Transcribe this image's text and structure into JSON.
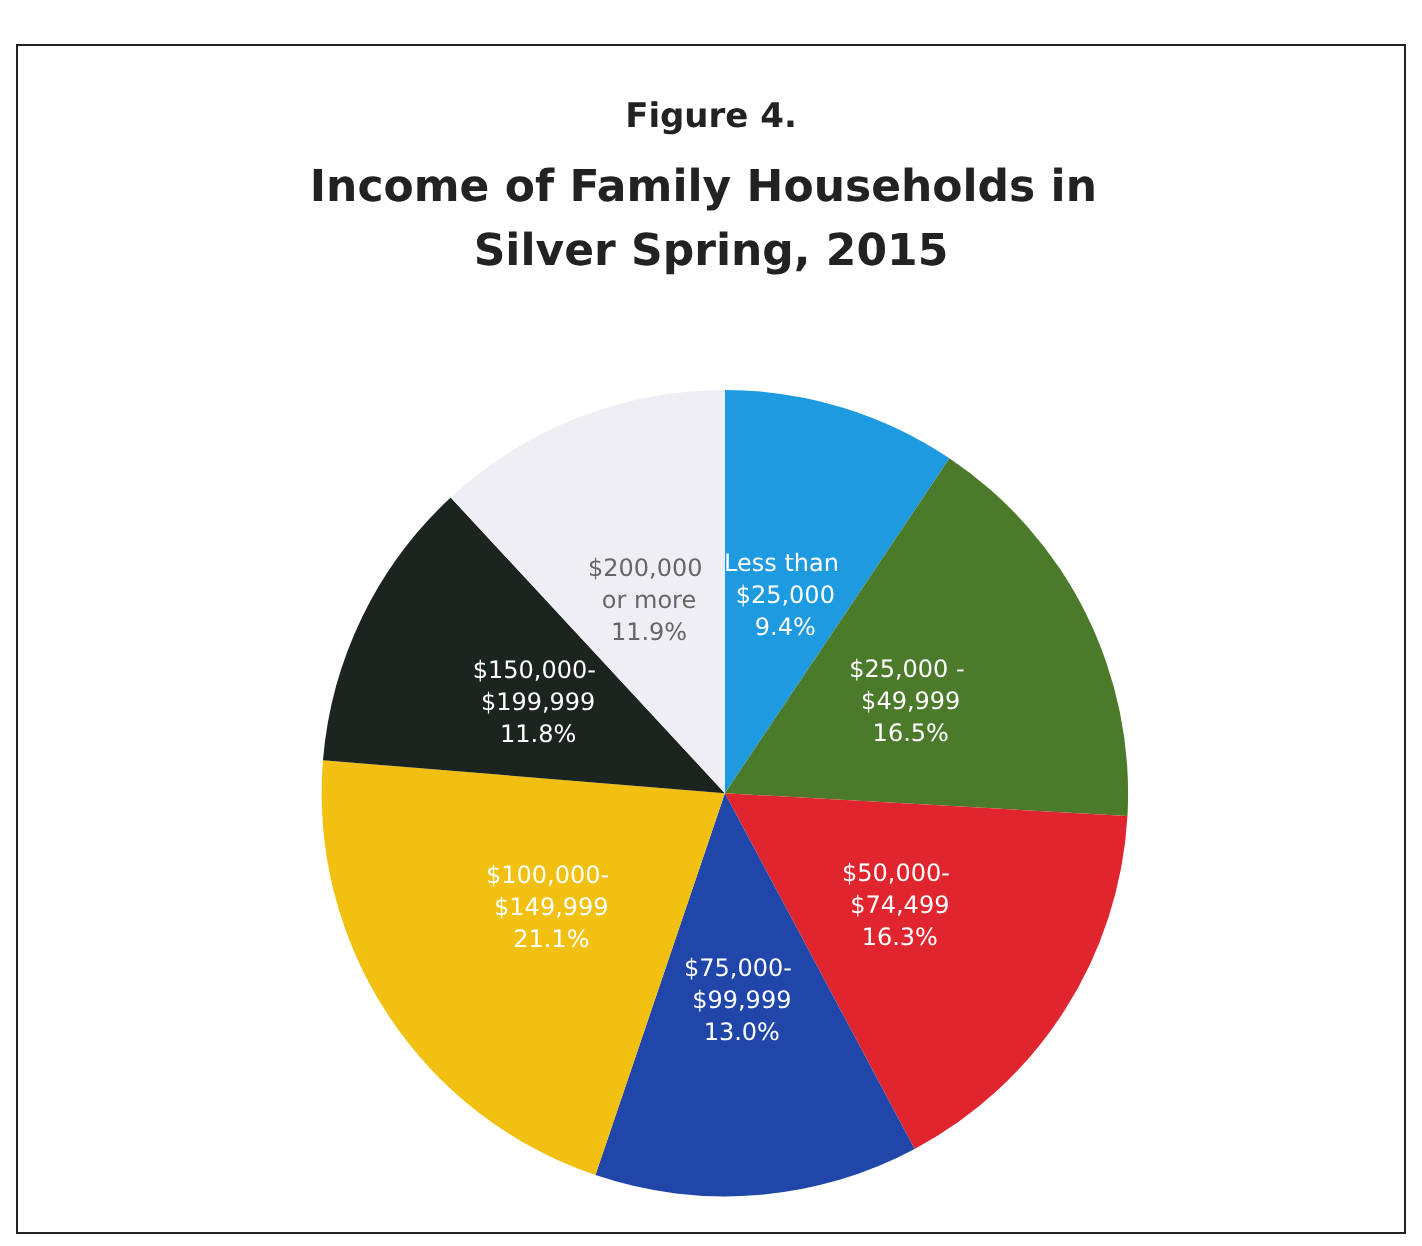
{
  "chart_data": {
    "type": "pie",
    "subtitle": "Figure 4.",
    "title": "Income of Family Households in Silver Spring, 2015",
    "categories": [
      "Less than $25,000",
      "$25,000 - $49,999",
      "$50,000- $74,499",
      "$75,000- $99,999",
      "$100,000- $149,999",
      "$150,000- $199,999",
      "$200,000 or more"
    ],
    "values": [
      9.4,
      16.5,
      16.3,
      13.0,
      21.1,
      11.8,
      11.9
    ],
    "colors": [
      "#1e9be0",
      "#4a7a2a",
      "#e0252e",
      "#1f46a8",
      "#f2c010",
      "#1c2420",
      "#eeeef4"
    ],
    "value_labels": [
      "9.4%",
      "16.5%",
      "16.3%",
      "13.0%",
      "21.1%",
      "11.8%",
      "11.9%"
    ]
  }
}
